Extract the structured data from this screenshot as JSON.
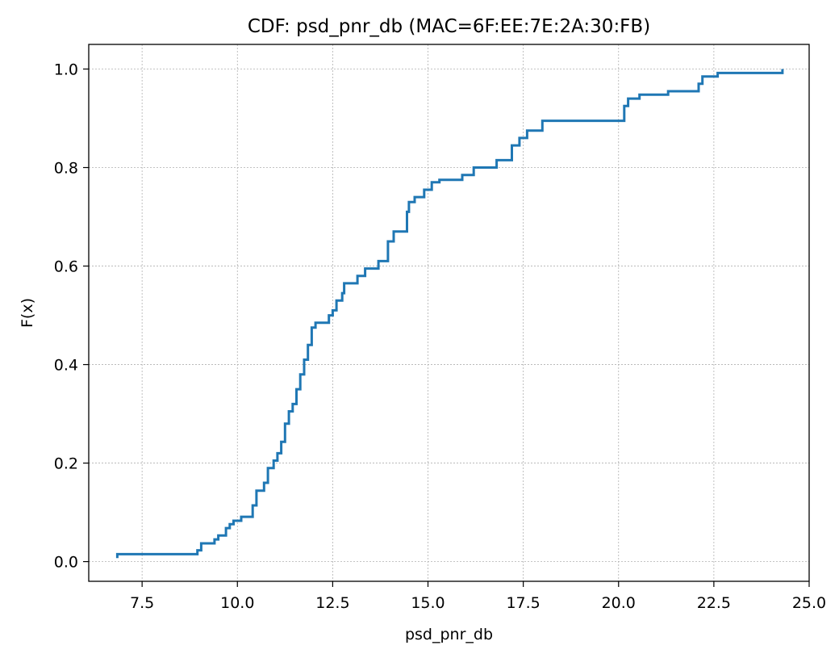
{
  "chart_data": {
    "type": "line",
    "title": "CDF: psd_pnr_db (MAC=6F:EE:7E:2A:30:FB)",
    "xlabel": "psd_pnr_db",
    "ylabel": "F(x)",
    "xlim": [
      6.1,
      25.0
    ],
    "ylim": [
      -0.04,
      1.05
    ],
    "xticks": [
      7.5,
      10.0,
      12.5,
      15.0,
      17.5,
      20.0,
      22.5,
      25.0
    ],
    "xtick_labels": [
      "7.5",
      "10.0",
      "12.5",
      "15.0",
      "17.5",
      "20.0",
      "22.5",
      "25.0"
    ],
    "yticks": [
      0.0,
      0.2,
      0.4,
      0.6,
      0.8,
      1.0
    ],
    "ytick_labels": [
      "0.0",
      "0.2",
      "0.4",
      "0.6",
      "0.8",
      "1.0"
    ],
    "grid": true,
    "color": "#1f77b4",
    "series": [
      {
        "step": "post",
        "x": [
          6.85,
          6.85,
          8.95,
          9.05,
          9.4,
          9.5,
          9.7,
          9.8,
          9.9,
          10.1,
          10.4,
          10.5,
          10.7,
          10.8,
          10.95,
          11.05,
          11.15,
          11.25,
          11.35,
          11.45,
          11.55,
          11.65,
          11.75,
          11.85,
          11.95,
          12.05,
          12.4,
          12.5,
          12.6,
          12.75,
          12.8,
          13.15,
          13.35,
          13.7,
          13.95,
          14.1,
          14.45,
          14.5,
          14.65,
          14.9,
          15.1,
          15.3,
          15.9,
          16.2,
          16.8,
          17.2,
          17.4,
          17.6,
          18.0,
          20.15,
          20.25,
          20.3,
          20.55,
          21.3,
          22.1,
          22.2,
          22.6,
          24.3
        ],
        "y": [
          0.007,
          0.015,
          0.023,
          0.037,
          0.045,
          0.053,
          0.068,
          0.076,
          0.083,
          0.091,
          0.114,
          0.144,
          0.16,
          0.19,
          0.205,
          0.22,
          0.243,
          0.28,
          0.305,
          0.32,
          0.35,
          0.38,
          0.41,
          0.44,
          0.475,
          0.485,
          0.5,
          0.51,
          0.53,
          0.545,
          0.565,
          0.58,
          0.595,
          0.61,
          0.65,
          0.67,
          0.71,
          0.73,
          0.74,
          0.755,
          0.77,
          0.775,
          0.785,
          0.8,
          0.815,
          0.845,
          0.86,
          0.875,
          0.895,
          0.925,
          0.94,
          0.94,
          0.948,
          0.955,
          0.97,
          0.985,
          0.992,
          1.0
        ]
      }
    ]
  }
}
